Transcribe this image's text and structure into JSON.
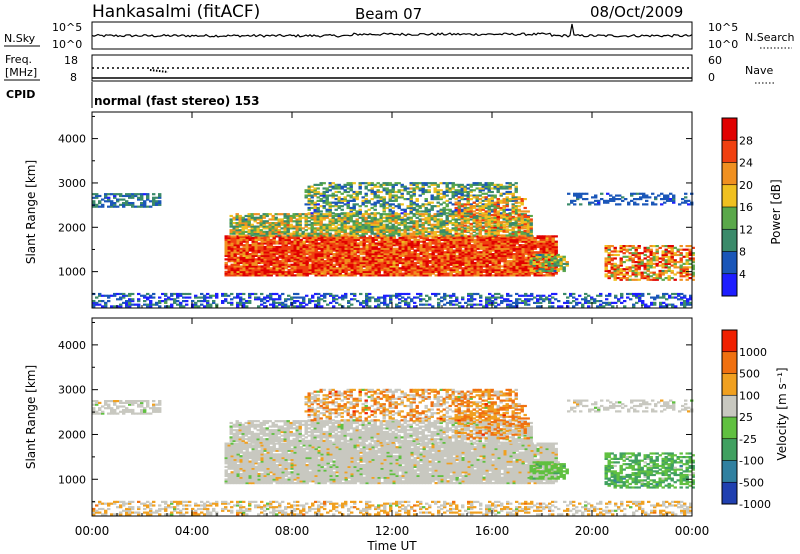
{
  "header": {
    "station": "Hankasalmi (fitACF)",
    "beam": "Beam 07",
    "date": "08/Oct/2009"
  },
  "top_panels": {
    "nsky_label": "N.Sky",
    "nsearch_label": "N.Search",
    "noise_ticks": [
      "10^5",
      "10^0"
    ],
    "freq_label_1": "Freq.",
    "freq_label_2": "[MHz]",
    "freq_ticks": [
      "18",
      "8"
    ],
    "nave_label": "Nave",
    "nave_ticks": [
      "60",
      "0"
    ],
    "cpid_label": "CPID",
    "cpid_text": "normal (fast stereo) 153"
  },
  "chart_data": [
    {
      "type": "heatmap",
      "quantity": "power",
      "ylabel": "Slant Range [km]",
      "ylim": [
        180,
        4600
      ],
      "yticks": [
        1000,
        2000,
        3000,
        4000
      ],
      "colorbar_label": "Power [dB]",
      "colorbar_ticks": [
        4,
        8,
        12,
        16,
        20,
        24,
        28
      ],
      "colorbar_range": [
        0,
        32
      ],
      "colorbar_colors": [
        "#1e1eff",
        "#1a56b8",
        "#3a8a6a",
        "#5aa84a",
        "#f0c020",
        "#f09020",
        "#f04010",
        "#e00000"
      ],
      "xlim": [
        0,
        24
      ],
      "xticks": [
        "00:00",
        "04:00",
        "08:00",
        "12:00",
        "16:00",
        "20:00",
        "00:00"
      ]
    },
    {
      "type": "heatmap",
      "quantity": "velocity",
      "ylabel": "Slant Range [km]",
      "ylim": [
        180,
        4600
      ],
      "yticks": [
        1000,
        2000,
        3000,
        4000
      ],
      "colorbar_label": "Velocity [m s⁻¹]",
      "colorbar_ticks": [
        "1000",
        "500",
        "100",
        "25",
        "-25",
        "-100",
        "-500",
        "-1000"
      ],
      "colorbar_colors": [
        "#2040b0",
        "#3080a0",
        "#40a060",
        "#60c040",
        "#c8c8c0",
        "#f0a020",
        "#f07010",
        "#f02000"
      ],
      "xlabel": "Time UT",
      "xlim": [
        0,
        24
      ],
      "xticks": [
        "00:00",
        "04:00",
        "08:00",
        "12:00",
        "16:00",
        "20:00",
        "00:00"
      ]
    }
  ]
}
